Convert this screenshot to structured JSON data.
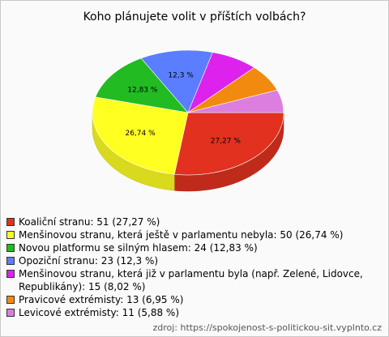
{
  "chart_data": {
    "type": "pie3d",
    "title": "Koho plánujete volit v příštích volbách?",
    "categories": [
      "Koaliční stranu: 51 (27,27 %)",
      "Menšinovou stranu, která ještě v parlamentu nebyla: 50 (26,74 %)",
      "Novou platformu se silným hlasem: 24 (12,83 %)",
      "Opoziční stranu: 23 (12,3 %)",
      "Menšinovou stranu, která již v parlamentu byla (např. Zelené, Lidovce, Republikány): 15 (8,02 %)",
      "Pravicové extrémisty: 13 (6,95 %)",
      "Levicové extrémisty: 11 (5,88 %)"
    ],
    "values": [
      27.27,
      26.74,
      12.83,
      12.3,
      8.02,
      6.95,
      5.88
    ],
    "value_labels": [
      "27,27 %",
      "26,74 %",
      "12,83 %",
      "12,3 %",
      null,
      null,
      null
    ],
    "colors": [
      "#e2311f",
      "#ffff22",
      "#22bb22",
      "#5a7eff",
      "#dd22ee",
      "#f28a0f",
      "#dc7ee0"
    ],
    "source": "zdroj: https://spokojenost-s-politickou-sit.vyplnto.cz"
  }
}
